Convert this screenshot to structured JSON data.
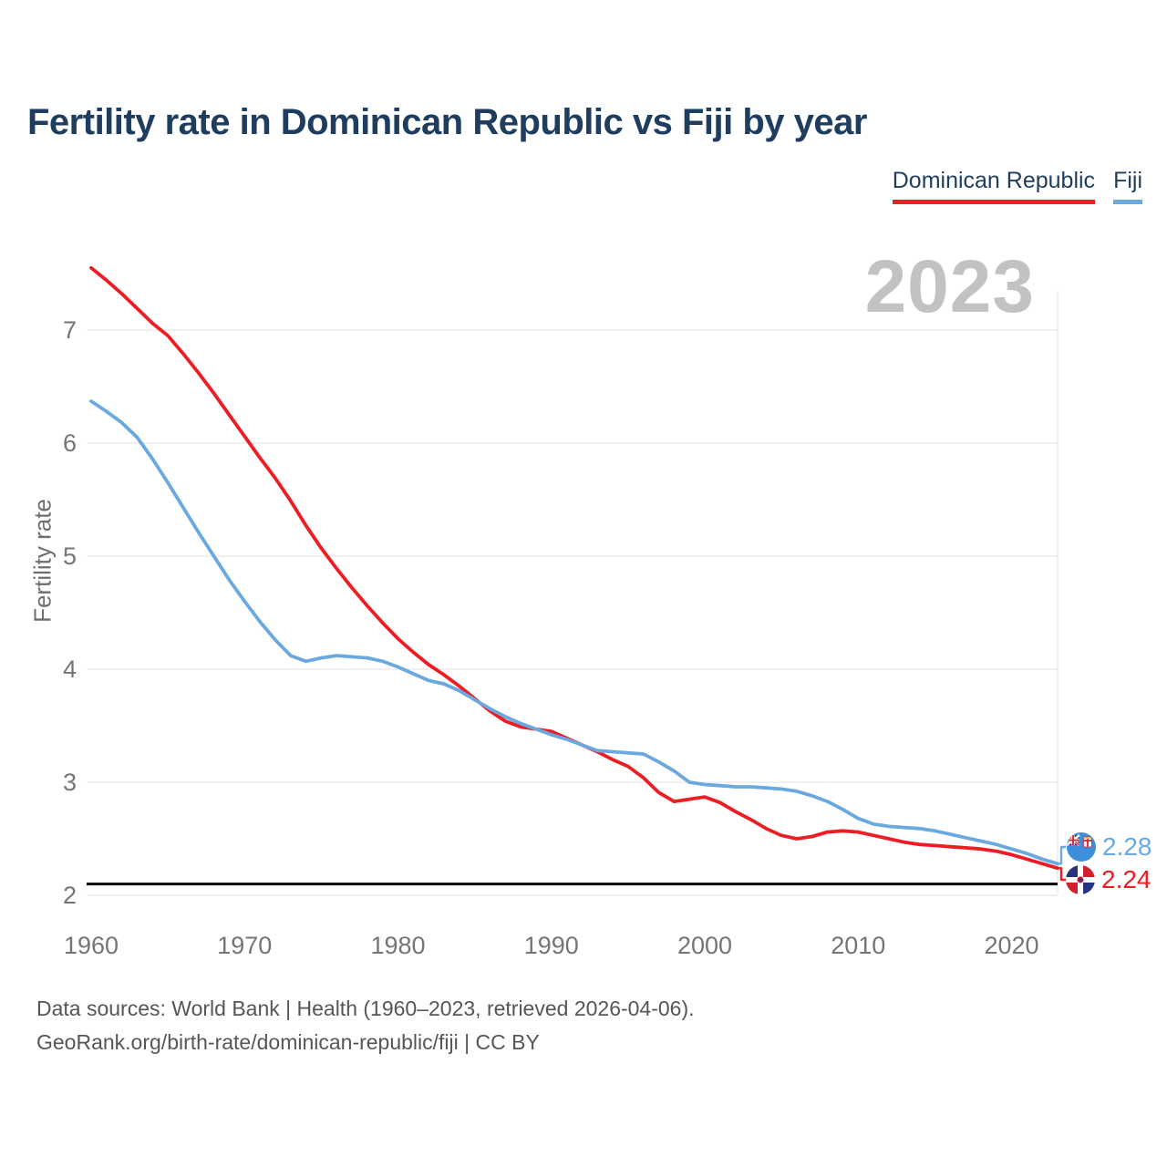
{
  "header": {
    "title": "Fertility rate in Dominican Republic vs Fiji by year"
  },
  "legend": {
    "items": [
      {
        "label": "Dominican Republic",
        "color": "#ee1c23"
      },
      {
        "label": "Fiji",
        "color": "#6aa9e0"
      }
    ]
  },
  "watermark": {
    "year": "2023"
  },
  "axes": {
    "y": {
      "title": "Fertility rate",
      "ticks": [
        7,
        6,
        5,
        4,
        3,
        2
      ]
    },
    "x": {
      "ticks": [
        1960,
        1970,
        1980,
        1990,
        2000,
        2010,
        2020
      ]
    }
  },
  "end_labels": {
    "fiji": {
      "value": "2.28",
      "color": "#6aa9e0",
      "flag": "fiji-flag-icon"
    },
    "dominican_republic": {
      "value": "2.24",
      "color": "#ee1c23",
      "flag": "dominican-republic-flag-icon"
    }
  },
  "footer": {
    "line1": "Data sources: World Bank | Health (1960–2023, retrieved 2026-04-06).",
    "line2": "GeoRank.org/birth-rate/dominican-republic/fiji | CC BY"
  },
  "colors": {
    "title": "#1e3d5f",
    "dominican_republic": "#ee1c23",
    "fiji": "#6aa9e0",
    "gridline": "#ececec",
    "tick_text": "#757575",
    "watermark": "#c2c2c2",
    "threshold": "#000000"
  },
  "chart_data": {
    "type": "line",
    "title": "Fertility rate in Dominican Republic vs Fiji by year",
    "ylabel": "Fertility rate",
    "xlabel": "",
    "ylim": [
      2,
      7.8
    ],
    "xlim": [
      1960,
      2023
    ],
    "grid": "horizontal",
    "legend_position": "top-right",
    "threshold": {
      "value": 2.1,
      "color": "#000000",
      "name": "replacement-level"
    },
    "x": [
      1960,
      1961,
      1962,
      1963,
      1964,
      1965,
      1966,
      1967,
      1968,
      1969,
      1970,
      1971,
      1972,
      1973,
      1974,
      1975,
      1976,
      1977,
      1978,
      1979,
      1980,
      1981,
      1982,
      1983,
      1984,
      1985,
      1986,
      1987,
      1988,
      1989,
      1990,
      1991,
      1992,
      1993,
      1994,
      1995,
      1996,
      1997,
      1998,
      1999,
      2000,
      2001,
      2002,
      2003,
      2004,
      2005,
      2006,
      2007,
      2008,
      2009,
      2010,
      2011,
      2012,
      2013,
      2014,
      2015,
      2016,
      2017,
      2018,
      2019,
      2020,
      2021,
      2022,
      2023
    ],
    "series": [
      {
        "id": "dominican-republic",
        "name": "Dominican Republic",
        "color": "#ee1c23",
        "end_value": 2.24,
        "values": [
          7.55,
          7.44,
          7.32,
          7.19,
          7.06,
          6.95,
          6.79,
          6.62,
          6.44,
          6.25,
          6.06,
          5.87,
          5.69,
          5.49,
          5.27,
          5.07,
          4.89,
          4.72,
          4.56,
          4.41,
          4.27,
          4.15,
          4.04,
          3.95,
          3.85,
          3.74,
          3.63,
          3.54,
          3.49,
          3.47,
          3.45,
          3.39,
          3.33,
          3.27,
          3.2,
          3.14,
          3.04,
          2.91,
          2.83,
          2.85,
          2.87,
          2.82,
          2.74,
          2.67,
          2.59,
          2.53,
          2.5,
          2.52,
          2.56,
          2.57,
          2.56,
          2.53,
          2.5,
          2.47,
          2.45,
          2.44,
          2.43,
          2.42,
          2.41,
          2.39,
          2.36,
          2.32,
          2.28,
          2.24
        ]
      },
      {
        "id": "fiji",
        "name": "Fiji",
        "color": "#6aa9e0",
        "end_value": 2.28,
        "values": [
          6.37,
          6.28,
          6.18,
          6.05,
          5.86,
          5.65,
          5.43,
          5.21,
          5.0,
          4.79,
          4.6,
          4.42,
          4.26,
          4.12,
          4.07,
          4.1,
          4.12,
          4.11,
          4.1,
          4.07,
          4.02,
          3.96,
          3.9,
          3.87,
          3.81,
          3.73,
          3.65,
          3.58,
          3.52,
          3.47,
          3.42,
          3.38,
          3.33,
          3.28,
          3.27,
          3.26,
          3.25,
          3.18,
          3.1,
          3.0,
          2.98,
          2.97,
          2.96,
          2.96,
          2.95,
          2.94,
          2.92,
          2.88,
          2.83,
          2.76,
          2.68,
          2.63,
          2.61,
          2.6,
          2.59,
          2.57,
          2.54,
          2.51,
          2.48,
          2.45,
          2.41,
          2.37,
          2.32,
          2.28
        ]
      }
    ]
  }
}
